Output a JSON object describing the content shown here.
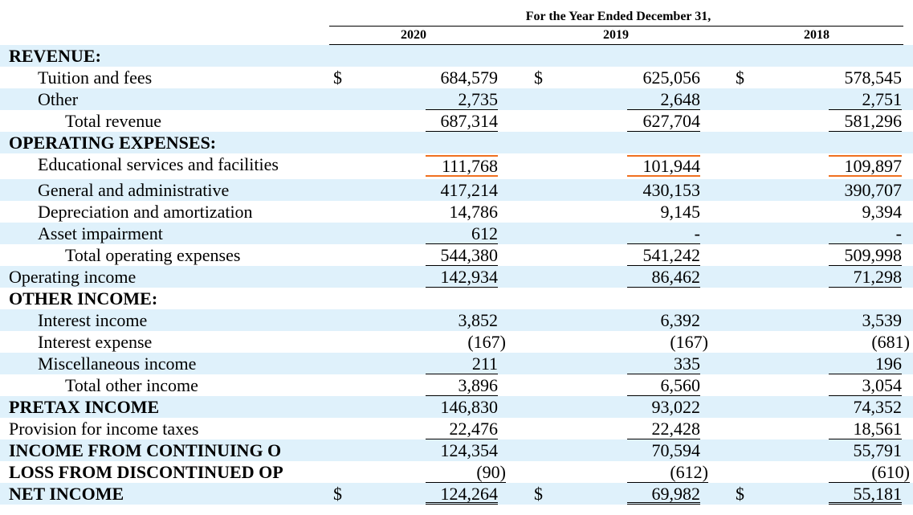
{
  "header": {
    "period_title": "For the Year Ended December 31,",
    "years": [
      "2020",
      "2019",
      "2018"
    ]
  },
  "currency_symbol": "$",
  "rows": [
    {
      "label": "REVENUE:",
      "style": "bold",
      "indent": 0,
      "values": [
        "",
        "",
        ""
      ]
    },
    {
      "label": "Tuition and fees",
      "indent": 1,
      "currency": true,
      "values": [
        "684,579",
        "625,056",
        "578,545"
      ]
    },
    {
      "label": "Other",
      "indent": 1,
      "values": [
        "2,735",
        "2,648",
        "2,751"
      ],
      "rule": "under"
    },
    {
      "label": "Total revenue",
      "indent": 2,
      "values": [
        "687,314",
        "627,704",
        "581,296"
      ],
      "rule": "under"
    },
    {
      "label": "OPERATING EXPENSES:",
      "style": "bold",
      "indent": 0,
      "values": [
        "",
        "",
        ""
      ]
    },
    {
      "label": "Educational services and facilities",
      "indent": 1,
      "values": [
        "111,768",
        "101,944",
        "109,897"
      ],
      "rule": "orange"
    },
    {
      "label": "General and administrative",
      "indent": 1,
      "values": [
        "417,214",
        "430,153",
        "390,707"
      ]
    },
    {
      "label": "Depreciation and amortization",
      "indent": 1,
      "values": [
        "14,786",
        "9,145",
        "9,394"
      ]
    },
    {
      "label": "Asset impairment",
      "indent": 1,
      "values": [
        "612",
        "-",
        "-"
      ],
      "rule": "under"
    },
    {
      "label": "Total operating expenses",
      "indent": 2,
      "values": [
        "544,380",
        "541,242",
        "509,998"
      ],
      "rule": "under"
    },
    {
      "label": "Operating income",
      "indent": 0,
      "values": [
        "142,934",
        "86,462",
        "71,298"
      ],
      "rule": "under"
    },
    {
      "label": "OTHER INCOME:",
      "style": "bold",
      "indent": 0,
      "values": [
        "",
        "",
        ""
      ]
    },
    {
      "label": "Interest income",
      "indent": 1,
      "values": [
        "3,852",
        "6,392",
        "3,539"
      ]
    },
    {
      "label": "Interest expense",
      "indent": 1,
      "values": [
        "(167)",
        "(167)",
        "(681)"
      ]
    },
    {
      "label": "Miscellaneous income",
      "indent": 1,
      "values": [
        "211",
        "335",
        "196"
      ],
      "rule": "under"
    },
    {
      "label": "Total other income",
      "indent": 2,
      "values": [
        "3,896",
        "6,560",
        "3,054"
      ],
      "rule": "under"
    },
    {
      "label": "PRETAX INCOME",
      "style": "bold",
      "indent": 0,
      "values": [
        "146,830",
        "93,022",
        "74,352"
      ]
    },
    {
      "label": "Provision for income taxes",
      "indent": 0,
      "values": [
        "22,476",
        "22,428",
        "18,561"
      ],
      "rule": "under"
    },
    {
      "label": "INCOME FROM CONTINUING O",
      "style": "bold",
      "indent": 0,
      "values": [
        "124,354",
        "70,594",
        "55,791"
      ]
    },
    {
      "label": "LOSS FROM DISCONTINUED OP",
      "style": "bold",
      "indent": 0,
      "values": [
        "(90)",
        "(612)",
        "(610)"
      ],
      "rule": "under"
    },
    {
      "label": "NET INCOME",
      "style": "bold",
      "indent": 0,
      "currency": true,
      "values": [
        "124,264",
        "69,982",
        "55,181"
      ],
      "rule": "dbl"
    }
  ],
  "colors": {
    "shade": "#dff1fb",
    "highlight": "#f07020"
  }
}
